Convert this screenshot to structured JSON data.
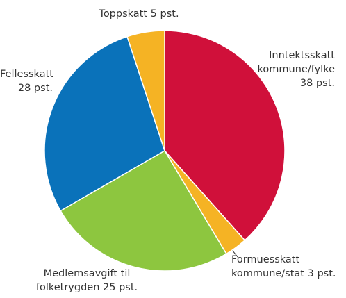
{
  "chart_data": {
    "type": "pie",
    "categories": [
      "Inntektsskatt kommune/fylke",
      "Formuesskatt kommune/stat",
      "Medlemsavgift til folketrygden",
      "Fellesskatt",
      "Toppskatt"
    ],
    "values": [
      38,
      3,
      25,
      28,
      5
    ],
    "value_labels": [
      "38 pst.",
      "3 pst.",
      "25 pst.",
      "28 pst.",
      "5 pst."
    ],
    "colors": [
      "#d0103a",
      "#f5b324",
      "#8dc63f",
      "#0a72ba",
      "#f5b324"
    ]
  }
}
